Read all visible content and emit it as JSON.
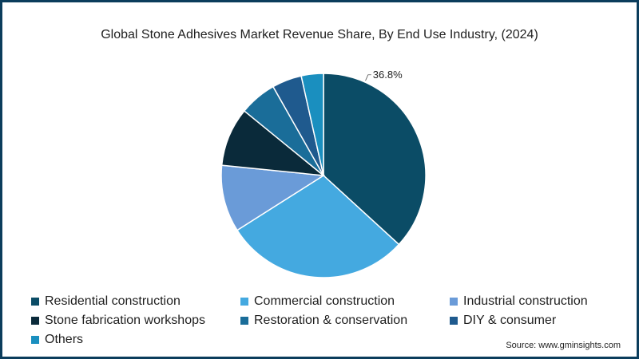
{
  "chart_data": {
    "type": "pie",
    "title": "Global Stone Adhesives Market Revenue Share, By End Use Industry, (2024)",
    "categories": [
      "Residential construction",
      "Commercial construction",
      "Industrial construction",
      "Stone fabrication workshops",
      "Restoration & conservation",
      "DIY & consumer",
      "Others"
    ],
    "values": [
      36.8,
      29.2,
      10.6,
      9.3,
      5.9,
      4.7,
      3.5
    ],
    "data_labels": [
      "36.8%",
      "",
      "",
      "",
      "",
      "",
      ""
    ],
    "colors": [
      "#0b4c66",
      "#44a9e0",
      "#6a9bd8",
      "#0a2a3a",
      "#1a6d99",
      "#1f5a8e",
      "#1a8fbf"
    ],
    "legend_position": "bottom"
  },
  "source": "Source: www.gminsights.com"
}
